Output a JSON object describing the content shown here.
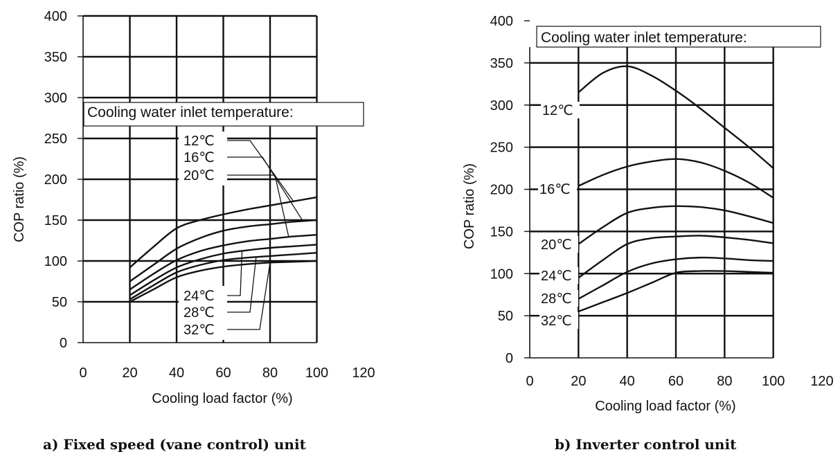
{
  "charts": [
    {
      "caption": "a) Fixed speed (vane control) unit",
      "chart_data": {
        "type": "line",
        "title": "",
        "xlabel": "Cooling load factor (%)",
        "ylabel": "COP ratio (%)",
        "xlim": [
          0,
          120
        ],
        "ylim": [
          0,
          400
        ],
        "xticks": [
          "0",
          "20",
          "40",
          "60",
          "80",
          "100",
          "120"
        ],
        "yticks": [
          "0",
          "50",
          "100",
          "150",
          "200",
          "250",
          "300",
          "350",
          "400"
        ],
        "grid": true,
        "annotation": "Cooling water inlet temperature:",
        "series": [
          {
            "name": "12℃",
            "x": [
              20,
              30,
              40,
              50,
              60,
              70,
              80,
              90,
              100
            ],
            "y": [
              92,
              117,
              140,
              150,
              157,
              163,
              168,
              173,
              178
            ]
          },
          {
            "name": "16℃",
            "x": [
              20,
              30,
              40,
              50,
              60,
              70,
              80,
              90,
              100
            ],
            "y": [
              75,
              95,
              115,
              128,
              137,
              142,
              145,
              148,
              150
            ]
          },
          {
            "name": "20℃",
            "x": [
              20,
              30,
              40,
              50,
              60,
              70,
              80,
              90,
              100
            ],
            "y": [
              65,
              84,
              101,
              112,
              119,
              124,
              127,
              130,
              132
            ]
          },
          {
            "name": "24℃",
            "x": [
              20,
              30,
              40,
              50,
              60,
              70,
              80,
              90,
              100
            ],
            "y": [
              58,
              76,
              92,
              102,
              109,
              113,
              116,
              118,
              120
            ]
          },
          {
            "name": "28℃",
            "x": [
              20,
              30,
              40,
              50,
              60,
              70,
              80,
              90,
              100
            ],
            "y": [
              53,
              70,
              86,
              95,
              101,
              104,
              106,
              108,
              110
            ]
          },
          {
            "name": "32℃",
            "x": [
              20,
              30,
              40,
              50,
              60,
              70,
              80,
              90,
              100
            ],
            "y": [
              50,
              65,
              80,
              88,
              93,
              96,
              98,
              99,
              100
            ]
          }
        ]
      }
    },
    {
      "caption": "b) Inverter control unit",
      "chart_data": {
        "type": "line",
        "title": "",
        "xlabel": "Cooling load factor (%)",
        "ylabel": "COP ratio (%)",
        "xlim": [
          0,
          120
        ],
        "ylim": [
          0,
          400
        ],
        "xticks": [
          "0",
          "20",
          "40",
          "60",
          "80",
          "100",
          "120"
        ],
        "yticks": [
          "0",
          "50",
          "100",
          "150",
          "200",
          "250",
          "300",
          "350",
          "400"
        ],
        "grid": true,
        "annotation": "Cooling water inlet temperature:",
        "series": [
          {
            "name": "12℃",
            "x": [
              20,
              30,
              40,
              50,
              60,
              70,
              80,
              90,
              100
            ],
            "y": [
              315,
              338,
              346,
              335,
              317,
              296,
              273,
              250,
              225
            ]
          },
          {
            "name": "16℃",
            "x": [
              20,
              30,
              40,
              50,
              60,
              70,
              80,
              90,
              100
            ],
            "y": [
              204,
              217,
              227,
              233,
              236,
              232,
              222,
              208,
              190
            ]
          },
          {
            "name": "20℃",
            "x": [
              20,
              30,
              40,
              50,
              60,
              70,
              80,
              90,
              100
            ],
            "y": [
              135,
              155,
              172,
              178,
              180,
              179,
              175,
              168,
              160
            ]
          },
          {
            "name": "24℃",
            "x": [
              20,
              30,
              40,
              50,
              60,
              70,
              80,
              90,
              100
            ],
            "y": [
              95,
              116,
              135,
              142,
              144,
              145,
              143,
              140,
              136
            ]
          },
          {
            "name": "28℃",
            "x": [
              20,
              30,
              40,
              50,
              60,
              70,
              80,
              90,
              100
            ],
            "y": [
              70,
              86,
              102,
              112,
              117,
              119,
              118,
              116,
              115
            ]
          },
          {
            "name": "32℃",
            "x": [
              20,
              30,
              40,
              50,
              60,
              70,
              80,
              90,
              100
            ],
            "y": [
              55,
              66,
              77,
              89,
              101,
              103,
              103,
              102,
              101
            ]
          }
        ]
      }
    }
  ]
}
